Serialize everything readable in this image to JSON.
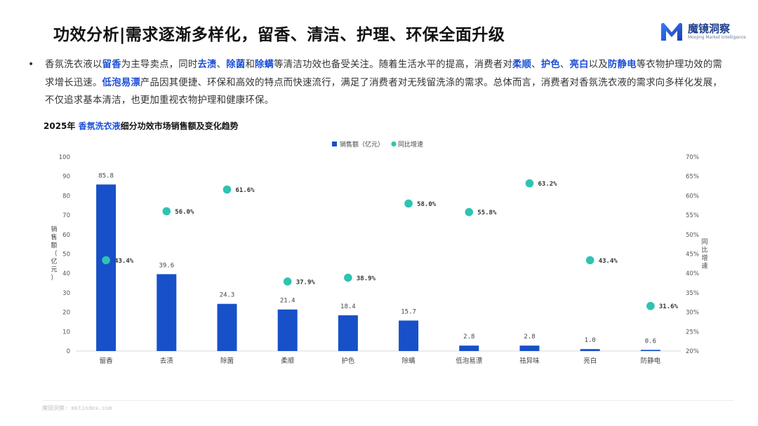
{
  "header": {
    "title": "功效分析|需求逐渐多样化，留香、清洁、护理、环保全面升级",
    "logo_name": "魔镜洞察",
    "logo_sub": "Moojing Market Intelligence"
  },
  "bullet": {
    "segments": [
      {
        "text": "香氛洗衣液以",
        "hl": false
      },
      {
        "text": "留香",
        "hl": true
      },
      {
        "text": "为主导卖点，同时",
        "hl": false
      },
      {
        "text": "去渍",
        "hl": true
      },
      {
        "text": "、",
        "hl": false
      },
      {
        "text": "除菌",
        "hl": true
      },
      {
        "text": "和",
        "hl": false
      },
      {
        "text": "除螨",
        "hl": true
      },
      {
        "text": "等清洁功效也备受关注。随着生活水平的提高，消费者对",
        "hl": false
      },
      {
        "text": "柔顺",
        "hl": true
      },
      {
        "text": "、",
        "hl": false
      },
      {
        "text": "护色",
        "hl": true
      },
      {
        "text": "、",
        "hl": false
      },
      {
        "text": "亮白",
        "hl": true
      },
      {
        "text": "以及",
        "hl": false
      },
      {
        "text": "防静电",
        "hl": true
      },
      {
        "text": "等衣物护理功效的需求增长迅速。",
        "hl": false
      },
      {
        "text": "低泡易漂",
        "hl": true
      },
      {
        "text": "产品因其便捷、环保和高效的特点而快速流行，满足了消费者对无残留洗涤的需求。总体而言，消费者对香氛洗衣液的需求向多样化发展，不仅追求基本清洁，也更加重视衣物护理和健康环保。",
        "hl": false
      }
    ]
  },
  "chart_title": {
    "prefix": "2025年 ",
    "highlight": "香氛洗衣液",
    "suffix": "细分功效市场销售额及变化趋势"
  },
  "chart_data": {
    "type": "bar",
    "categories": [
      "留香",
      "去渍",
      "除菌",
      "柔顺",
      "护色",
      "除螨",
      "低泡易漂",
      "祛异味",
      "亮白",
      "防静电"
    ],
    "series": [
      {
        "name": "销售额（亿元）",
        "type": "bar",
        "axis": "left",
        "color": "#1750c8",
        "values": [
          85.8,
          39.6,
          24.3,
          21.4,
          18.4,
          15.7,
          2.8,
          2.8,
          1.0,
          0.6
        ],
        "labels": [
          "85.8",
          "39.6",
          "24.3",
          "21.4",
          "18.4",
          "15.7",
          "2.8",
          "2.8",
          "1.0",
          "0.6"
        ]
      },
      {
        "name": "同比增速",
        "type": "scatter",
        "axis": "right",
        "color": "#2ec4b0",
        "values": [
          43.4,
          56.0,
          61.6,
          37.9,
          38.9,
          58.0,
          55.8,
          63.2,
          43.4,
          31.6
        ],
        "labels": [
          "43.4%",
          "56.0%",
          "61.6%",
          "37.9%",
          "38.9%",
          "58.0%",
          "55.8%",
          "63.2%",
          "43.4%",
          "31.6%"
        ]
      }
    ],
    "ylabel": "销售额（亿元）",
    "y2label": "同比增速",
    "ylim": [
      0,
      100
    ],
    "yticks": [
      "0",
      "10",
      "20",
      "30",
      "40",
      "50",
      "60",
      "70",
      "80",
      "90",
      "100"
    ],
    "y2lim": [
      20,
      70
    ],
    "y2ticks": [
      "20%",
      "25%",
      "30%",
      "35%",
      "40%",
      "45%",
      "50%",
      "55%",
      "60%",
      "65%",
      "70%"
    ],
    "legend_position": "top-center",
    "grid": false
  },
  "footer": {
    "source": "魔镜洞察: mktindex.com"
  }
}
